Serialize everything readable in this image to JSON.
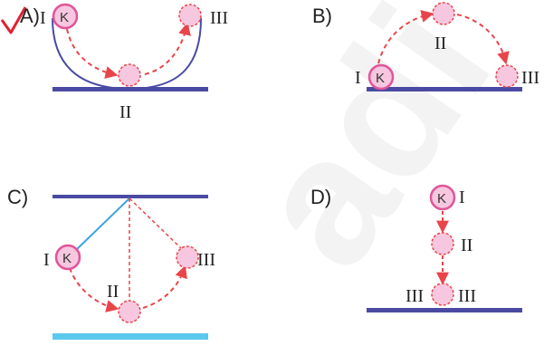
{
  "colors": {
    "surface": "#4a4aa3",
    "surface_light": "#5bc8ee",
    "path": "#e8454a",
    "ball_fill": "#f7c7df",
    "ball_outline": "#e0559a",
    "string": "#3ba3e0",
    "check": "#e02030",
    "track": "#4a4aa3"
  },
  "options": {
    "A": {
      "label": "A)",
      "pos1": "I",
      "pos2": "II",
      "pos3": "III",
      "ball": "K",
      "selected": true
    },
    "B": {
      "label": "B)",
      "pos1": "I",
      "pos2": "II",
      "pos3": "III",
      "ball": "K"
    },
    "C": {
      "label": "C)",
      "pos1": "I",
      "pos2": "II",
      "pos3": "III",
      "ball": "K"
    },
    "D": {
      "label": "D)",
      "pos1": "I",
      "pos2": "II",
      "pos3_left": "III",
      "pos3_right": "III",
      "ball": "K"
    }
  }
}
